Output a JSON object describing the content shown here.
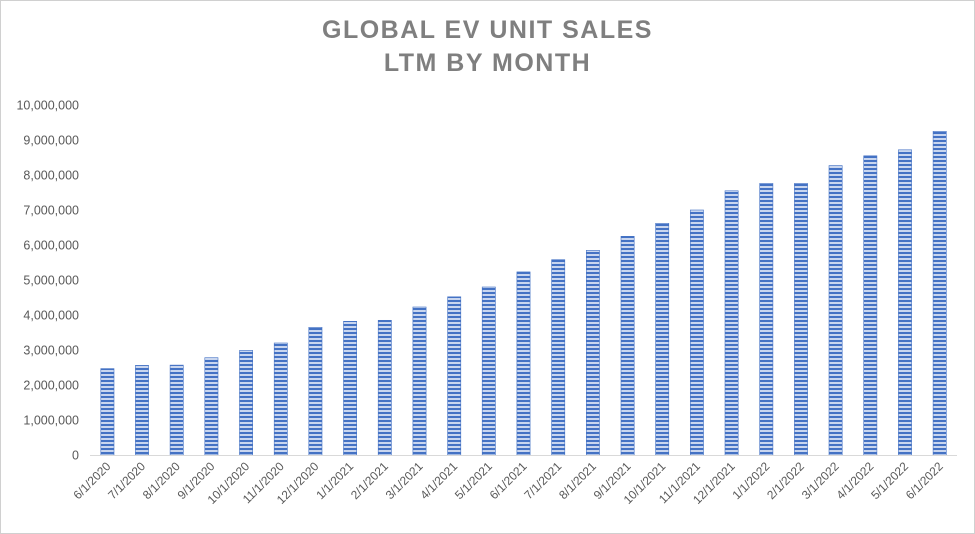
{
  "chart_data": {
    "type": "bar",
    "title_lines": [
      "GLOBAL EV UNIT SALES",
      "LTM BY MONTH"
    ],
    "xlabel": "",
    "ylabel": "",
    "ylim": [
      0,
      10000000
    ],
    "y_ticks": [
      "0",
      "1,000,000",
      "2,000,000",
      "3,000,000",
      "4,000,000",
      "5,000,000",
      "6,000,000",
      "7,000,000",
      "8,000,000",
      "9,000,000",
      "10,000,000"
    ],
    "y_tick_values": [
      0,
      1000000,
      2000000,
      3000000,
      4000000,
      5000000,
      6000000,
      7000000,
      8000000,
      9000000,
      10000000
    ],
    "grid": false,
    "legend": "none",
    "bar_color": "#4472c4",
    "bar_fill": "horizontal stripes",
    "categories": [
      "6/1/2020",
      "7/1/2020",
      "8/1/2020",
      "9/1/2020",
      "10/1/2020",
      "11/1/2020",
      "12/1/2020",
      "1/1/2021",
      "2/1/2021",
      "3/1/2021",
      "4/1/2021",
      "5/1/2021",
      "6/1/2021",
      "7/1/2021",
      "8/1/2021",
      "9/1/2021",
      "10/1/2021",
      "11/1/2021",
      "12/1/2021",
      "1/1/2022",
      "2/1/2022",
      "3/1/2022",
      "4/1/2022",
      "5/1/2022",
      "6/1/2022"
    ],
    "values": [
      2470000,
      2560000,
      2570000,
      2780000,
      2990000,
      3200000,
      3650000,
      3820000,
      3850000,
      4230000,
      4520000,
      4800000,
      5230000,
      5580000,
      5850000,
      6250000,
      6620000,
      7000000,
      7550000,
      7760000,
      7760000,
      8270000,
      8550000,
      8720000,
      9250000
    ]
  }
}
